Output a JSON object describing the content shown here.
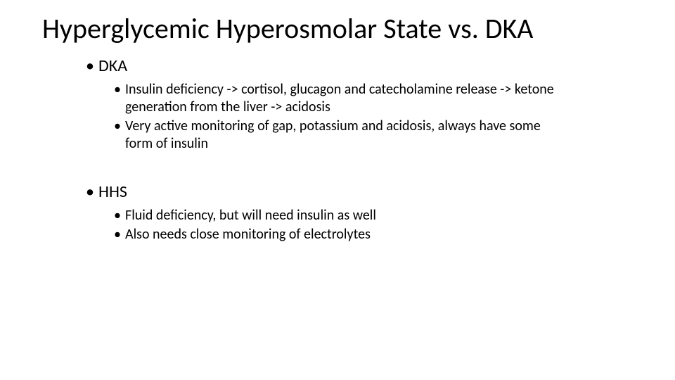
{
  "slide": {
    "title": "Hyperglycemic Hyperosmolar State vs. DKA",
    "background_color": "#ffffff",
    "text_color": "#000000",
    "title_fontsize_pt": 40,
    "lvl1_fontsize_pt": 24,
    "lvl2_fontsize_pt": 20,
    "font_family": "Calibri",
    "bullet_char": "•",
    "sections": [
      {
        "heading": "DKA",
        "items": [
          "Insulin deficiency -> cortisol, glucagon and catecholamine release -> ketone generation from the liver -> acidosis",
          "Very active monitoring of gap, potassium and acidosis, always have some form of insulin"
        ]
      },
      {
        "heading": "HHS",
        "items": [
          "Fluid deficiency, but will need insulin as well",
          "Also needs close monitoring of electrolytes"
        ]
      }
    ]
  }
}
